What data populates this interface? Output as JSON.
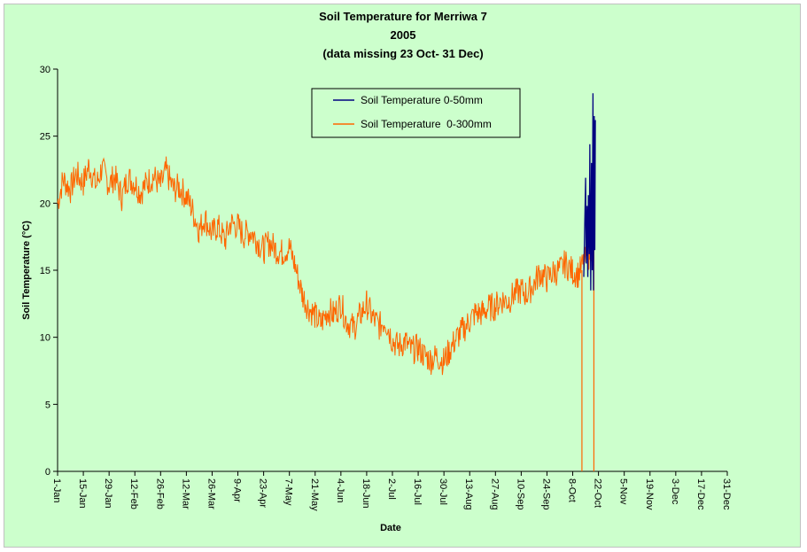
{
  "chart_data": {
    "type": "line",
    "title": [
      "Soil Temperature for Merriwa 7",
      "2005",
      "(data missing 23 Oct- 31 Dec)"
    ],
    "xlabel": "Date",
    "ylabel": "Soil Temperature (°C)",
    "xlim": [
      "1-Jan",
      "31-Dec"
    ],
    "ylim": [
      0,
      30
    ],
    "y_ticks": [
      0,
      5,
      10,
      15,
      20,
      25,
      30
    ],
    "x_ticks": [
      "1-Jan",
      "15-Jan",
      "29-Jan",
      "12-Feb",
      "26-Feb",
      "12-Mar",
      "26-Mar",
      "9-Apr",
      "23-Apr",
      "7-May",
      "21-May",
      "4-Jun",
      "18-Jun",
      "2-Jul",
      "16-Jul",
      "30-Jul",
      "13-Aug",
      "27-Aug",
      "10-Sep",
      "24-Sep",
      "8-Oct",
      "22-Oct",
      "5-Nov",
      "19-Nov",
      "3-Dec",
      "17-Dec",
      "31-Dec"
    ],
    "grid": false,
    "legend_position": "top-center",
    "series": [
      {
        "name": "Soil Temperature 0-50mm",
        "color": "#000080",
        "x_day": [
          286,
          287,
          287.3,
          287.8,
          288.2,
          288.5,
          289,
          289.3,
          289.8,
          290.2,
          290.6,
          291,
          291.3,
          291.7,
          292,
          292.3
        ],
        "values": [
          14.5,
          21.9,
          15.5,
          19.8,
          14.5,
          20.6,
          16.2,
          24.4,
          13.5,
          23.0,
          15.0,
          28.2,
          13.5,
          26.5,
          16.5,
          26.2
        ]
      },
      {
        "name": "Soil Temperature  0-300mm",
        "color": "#ff6600",
        "x_day": [
          0,
          3,
          7,
          10,
          14,
          17,
          21,
          24,
          28,
          31,
          35,
          38,
          42,
          45,
          49,
          52,
          56,
          59,
          63,
          66,
          70,
          73,
          77,
          80,
          84,
          87,
          91,
          94,
          98,
          101,
          105,
          108,
          112,
          115,
          119,
          122,
          126,
          129,
          133,
          136,
          140,
          143,
          147,
          150,
          154,
          157,
          161,
          164,
          168,
          171,
          175,
          178,
          182,
          185,
          189,
          192,
          196,
          199,
          203,
          206,
          210,
          213,
          217,
          220,
          224,
          227,
          231,
          234,
          238,
          241,
          245,
          248,
          252,
          255,
          259,
          262,
          266,
          269,
          273,
          276,
          280,
          283,
          286,
          289,
          292
        ],
        "values": [
          20.0,
          21.8,
          21.0,
          22.2,
          21.5,
          22.8,
          21.3,
          22.6,
          21.4,
          22.0,
          20.4,
          21.9,
          21.5,
          20.8,
          21.6,
          22.0,
          21.3,
          22.4,
          21.0,
          21.2,
          20.5,
          19.6,
          18.0,
          18.9,
          17.7,
          18.3,
          17.2,
          18.5,
          18.3,
          17.6,
          17.9,
          17.3,
          16.5,
          17.1,
          16.5,
          16.3,
          16.7,
          15.4,
          13.2,
          12.3,
          11.6,
          11.0,
          12.0,
          11.7,
          12.5,
          11.2,
          10.7,
          11.5,
          12.5,
          11.5,
          10.8,
          11.3,
          9.8,
          9.3,
          9.7,
          9.0,
          9.2,
          8.7,
          8.3,
          8.6,
          8.2,
          9.0,
          10.0,
          10.5,
          11.2,
          11.8,
          11.8,
          12.2,
          12.3,
          12.8,
          12.7,
          13.2,
          13.5,
          13.2,
          14.0,
          14.8,
          14.3,
          14.8,
          15.0,
          15.5,
          14.9,
          14.7,
          15.5,
          16.2,
          17.4
        ]
      }
    ],
    "annotations": [
      {
        "series": "Soil Temperature  0-300mm",
        "x_day": 285,
        "values": [
          15.0,
          0
        ]
      },
      {
        "series": "Soil Temperature  0-300mm",
        "x_day": 291.5,
        "values": [
          17.2,
          0
        ]
      }
    ]
  }
}
